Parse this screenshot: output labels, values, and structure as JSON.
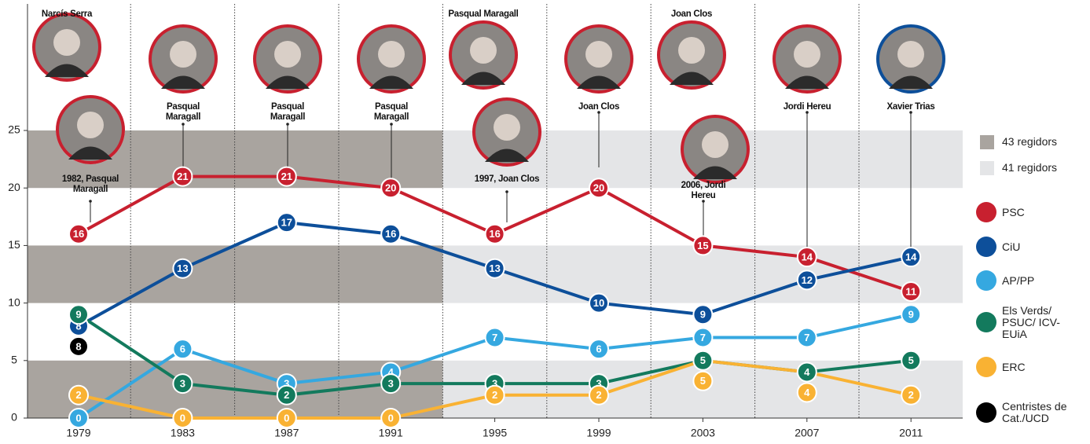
{
  "chart_data": {
    "type": "line",
    "categories": [
      "1979",
      "1983",
      "1987",
      "1991",
      "1995",
      "1999",
      "2003",
      "2007",
      "2011"
    ],
    "ylim": [
      0,
      36
    ],
    "yticks": [
      0,
      5,
      10,
      15,
      20,
      25
    ],
    "grid": false,
    "legend": "right",
    "council_sizes": [
      {
        "name": "43 regidors",
        "color": "#a9a49f"
      },
      {
        "name": "41 regidors",
        "color": "#e4e5e7"
      }
    ],
    "series": [
      {
        "name": "PSC",
        "color": "#c8202f",
        "values": [
          16,
          21,
          21,
          20,
          16,
          20,
          15,
          14,
          11
        ]
      },
      {
        "name": "CiU",
        "color": "#0d4f9a",
        "values": [
          8,
          13,
          17,
          16,
          13,
          10,
          9,
          12,
          14
        ]
      },
      {
        "name": "AP/PP",
        "color": "#35a8e0",
        "values": [
          0,
          6,
          3,
          4,
          7,
          6,
          7,
          7,
          9
        ]
      },
      {
        "name": "Els Verds/ PSUC/ ICV-EUiA",
        "color": "#137a5d",
        "values": [
          9,
          3,
          2,
          3,
          3,
          3,
          5,
          4,
          5
        ]
      },
      {
        "name": "ERC",
        "color": "#f9b233",
        "values": [
          2,
          0,
          0,
          0,
          2,
          2,
          5,
          4,
          2
        ]
      },
      {
        "name": "Centristes de Cat./UCD",
        "color": "#000000",
        "values": [
          8,
          null,
          null,
          null,
          null,
          null,
          null,
          null,
          null
        ]
      }
    ],
    "annotations": [
      "Narcís Serra",
      "1982, Pasqual Maragall",
      "Pasqual Maragall",
      "Pasqual Maragall",
      "Pasqual Maragall",
      "Pasqual Maragall",
      "1997, Joan Clos",
      "Joan Clos",
      "Joan Clos",
      "2006, Jordi Hereu",
      "Jordi Hereu",
      "Xavier Trias"
    ]
  }
}
